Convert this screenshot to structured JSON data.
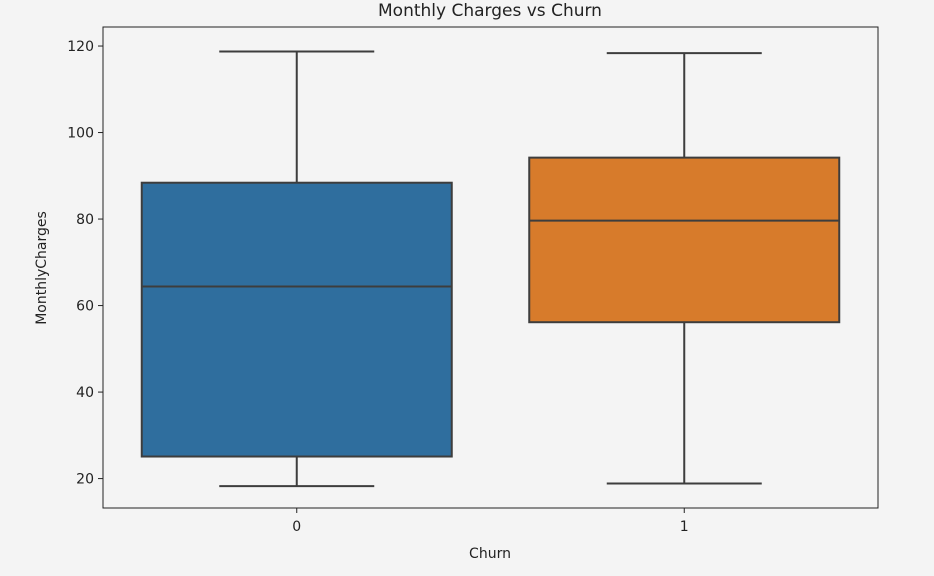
{
  "chart_data": {
    "type": "box",
    "title": "Monthly Charges vs Churn",
    "xlabel": "Churn",
    "ylabel": "MonthlyCharges",
    "ylim": [
      13.2,
      124.4
    ],
    "yticks": [
      20,
      40,
      60,
      80,
      100,
      120
    ],
    "categories": [
      "0",
      "1"
    ],
    "boxes": [
      {
        "category": "0",
        "whisker_low": 18.25,
        "q1": 25.1,
        "median": 64.4,
        "q3": 88.4,
        "whisker_high": 118.75,
        "color": "#2f6e9e"
      },
      {
        "category": "1",
        "whisker_low": 18.85,
        "q1": 56.15,
        "median": 79.65,
        "q3": 94.2,
        "whisker_high": 118.35,
        "color": "#d77b2b"
      }
    ],
    "grid": false,
    "legend": "none"
  }
}
